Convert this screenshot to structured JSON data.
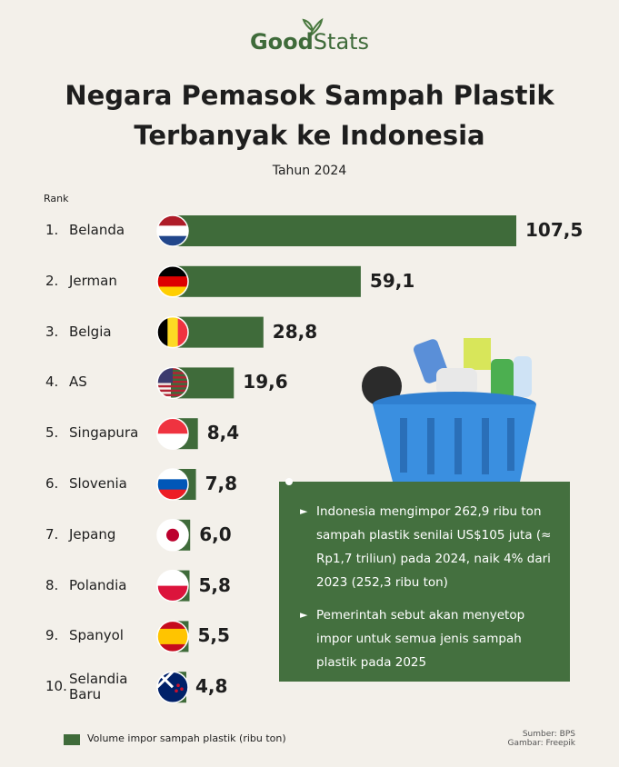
{
  "logo": {
    "left": "Good",
    "right": "Stats"
  },
  "chart_data": {
    "type": "bar",
    "orientation": "horizontal",
    "title": [
      "Negara Pemasok Sampah Plastik",
      "Terbanyak ke Indonesia"
    ],
    "subtitle": "Tahun 2024",
    "rank_label": "Rank",
    "ranks": [
      "1.",
      "2.",
      "3.",
      "4.",
      "5.",
      "6.",
      "7.",
      "8.",
      "9.",
      "10."
    ],
    "categories": [
      "Belanda",
      "Jerman",
      "Belgia",
      "AS",
      "Singapura",
      "Slovenia",
      "Jepang",
      "Polandia",
      "Spanyol",
      "Selandia Baru"
    ],
    "series": [
      {
        "name": "Volume impor sampah plastik (ribu ton)",
        "color": "#3f6b3a",
        "values": [
          107.5,
          59.1,
          28.8,
          19.6,
          8.4,
          7.8,
          6.0,
          5.8,
          5.5,
          4.8
        ],
        "value_labels": [
          "107,5",
          "59,1",
          "28,8",
          "19,6",
          "8,4",
          "7,8",
          "6,0",
          "5,8",
          "5,5",
          "4,8"
        ]
      }
    ],
    "annotations": [
      "Indonesia mengimpor 262,9 ribu ton sampah plastik senilai US$105 juta (≈ Rp1,7 triliun) pada 2024, naik 4% dari 2023 (252,3 ribu ton)",
      "Pemerintah sebut akan menyetop impor untuk semua jenis sampah plastik pada 2025"
    ],
    "sources": [
      "Sumber: BPS",
      "Gambar: Freepik"
    ]
  }
}
